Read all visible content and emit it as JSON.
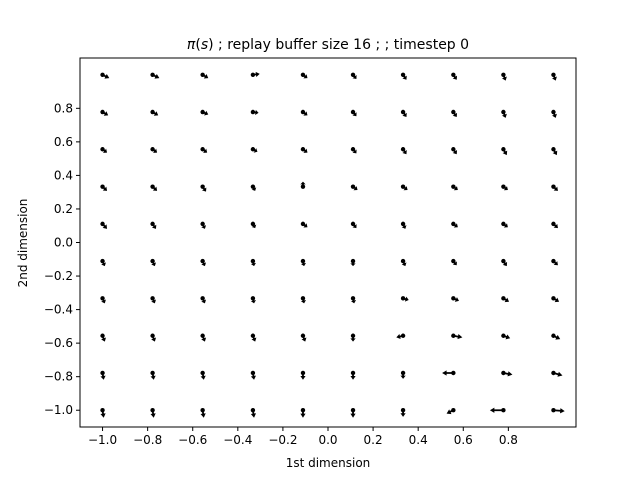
{
  "chart_data": {
    "type": "quiver",
    "title_parts": {
      "symbol": "π",
      "open": "(",
      "arg": "s",
      "close": ")",
      "rest": " ; replay buffer size 16 ;  ; timestep 0"
    },
    "xlabel": "1st dimension",
    "ylabel": "2nd dimension",
    "xlim": [
      -1.1,
      1.1
    ],
    "ylim": [
      -1.1,
      1.1
    ],
    "xticks": [
      "−1.0",
      "−0.8",
      "−0.6",
      "−0.4",
      "−0.2",
      "0.0",
      "0.2",
      "0.4",
      "0.6",
      "0.8"
    ],
    "xtick_values": [
      -1.0,
      -0.8,
      -0.6,
      -0.4,
      -0.2,
      0.0,
      0.2,
      0.4,
      0.6,
      0.8
    ],
    "yticks": [
      "−1.0",
      "−0.8",
      "−0.6",
      "−0.4",
      "−0.2",
      "0.0",
      "0.2",
      "0.4",
      "0.6",
      "0.8"
    ],
    "ytick_values": [
      -1.0,
      -0.8,
      -0.6,
      -0.4,
      -0.2,
      0.0,
      0.2,
      0.4,
      0.6,
      0.8
    ],
    "grid": false,
    "arrow_color": "#000000",
    "x_positions": [
      -1.0,
      -0.778,
      -0.556,
      -0.333,
      -0.111,
      0.111,
      0.333,
      0.556,
      0.778,
      1.0
    ],
    "y_positions": [
      1.0,
      0.778,
      0.556,
      0.333,
      0.111,
      -0.111,
      -0.333,
      -0.556,
      -0.778,
      -1.0
    ],
    "vectors": [
      [
        [
          0.03,
          -0.02
        ],
        [
          0.03,
          -0.02
        ],
        [
          0.025,
          -0.02
        ],
        [
          0.03,
          0.005
        ],
        [
          0.02,
          -0.02
        ],
        [
          0.015,
          -0.025
        ],
        [
          0.015,
          -0.03
        ],
        [
          0.015,
          -0.03
        ],
        [
          0.01,
          -0.035
        ],
        [
          0.01,
          -0.035
        ]
      ],
      [
        [
          0.025,
          -0.02
        ],
        [
          0.025,
          -0.02
        ],
        [
          0.025,
          -0.015
        ],
        [
          0.025,
          -0.005
        ],
        [
          0.02,
          -0.02
        ],
        [
          0.015,
          -0.025
        ],
        [
          0.015,
          -0.03
        ],
        [
          0.015,
          -0.03
        ],
        [
          0.01,
          -0.035
        ],
        [
          0.01,
          -0.035
        ]
      ],
      [
        [
          0.02,
          -0.02
        ],
        [
          0.02,
          -0.02
        ],
        [
          0.02,
          -0.02
        ],
        [
          0.02,
          -0.015
        ],
        [
          0.02,
          -0.02
        ],
        [
          0.015,
          -0.025
        ],
        [
          0.015,
          -0.03
        ],
        [
          0.015,
          -0.03
        ],
        [
          0.015,
          -0.035
        ],
        [
          0.015,
          -0.035
        ]
      ],
      [
        [
          0.02,
          -0.025
        ],
        [
          0.02,
          -0.025
        ],
        [
          0.015,
          -0.03
        ],
        [
          0.01,
          -0.025
        ],
        [
          0.0,
          0.03
        ],
        [
          0.02,
          -0.02
        ],
        [
          0.02,
          -0.02
        ],
        [
          0.02,
          -0.02
        ],
        [
          0.02,
          -0.02
        ],
        [
          0.02,
          -0.025
        ]
      ],
      [
        [
          0.02,
          -0.03
        ],
        [
          0.015,
          -0.03
        ],
        [
          0.01,
          -0.03
        ],
        [
          0.01,
          -0.025
        ],
        [
          0.02,
          -0.02
        ],
        [
          0.015,
          -0.025
        ],
        [
          0.01,
          -0.03
        ],
        [
          0.02,
          -0.02
        ],
        [
          0.02,
          -0.02
        ],
        [
          0.02,
          -0.025
        ]
      ],
      [
        [
          0.01,
          -0.03
        ],
        [
          0.01,
          -0.03
        ],
        [
          0.01,
          -0.03
        ],
        [
          0.005,
          -0.03
        ],
        [
          0.005,
          -0.03
        ],
        [
          0.0,
          -0.03
        ],
        [
          0.01,
          -0.03
        ],
        [
          0.015,
          -0.025
        ],
        [
          0.015,
          -0.03
        ],
        [
          0.02,
          -0.025
        ]
      ],
      [
        [
          0.01,
          -0.03
        ],
        [
          0.01,
          -0.03
        ],
        [
          0.01,
          -0.03
        ],
        [
          0.005,
          -0.03
        ],
        [
          0.005,
          -0.03
        ],
        [
          0.005,
          -0.03
        ],
        [
          0.025,
          -0.01
        ],
        [
          0.025,
          -0.015
        ],
        [
          0.025,
          -0.02
        ],
        [
          0.025,
          -0.02
        ]
      ],
      [
        [
          0.01,
          -0.035
        ],
        [
          0.01,
          -0.035
        ],
        [
          0.01,
          -0.035
        ],
        [
          0.01,
          -0.035
        ],
        [
          0.01,
          -0.035
        ],
        [
          0.0,
          -0.035
        ],
        [
          -0.03,
          -0.01
        ],
        [
          0.04,
          -0.01
        ],
        [
          0.03,
          -0.015
        ],
        [
          0.03,
          -0.02
        ]
      ],
      [
        [
          0.005,
          -0.04
        ],
        [
          0.005,
          -0.04
        ],
        [
          0.005,
          -0.04
        ],
        [
          0.005,
          -0.04
        ],
        [
          0.0,
          -0.04
        ],
        [
          0.0,
          -0.04
        ],
        [
          0.0,
          -0.035
        ],
        [
          -0.05,
          0.0
        ],
        [
          0.04,
          -0.01
        ],
        [
          0.04,
          -0.015
        ]
      ],
      [
        [
          0.005,
          -0.045
        ],
        [
          0.005,
          -0.045
        ],
        [
          0.005,
          -0.045
        ],
        [
          0.005,
          -0.045
        ],
        [
          0.0,
          -0.045
        ],
        [
          0.0,
          -0.045
        ],
        [
          0.0,
          -0.04
        ],
        [
          -0.03,
          -0.02
        ],
        [
          -0.06,
          0.0
        ],
        [
          0.05,
          -0.005
        ]
      ]
    ]
  }
}
